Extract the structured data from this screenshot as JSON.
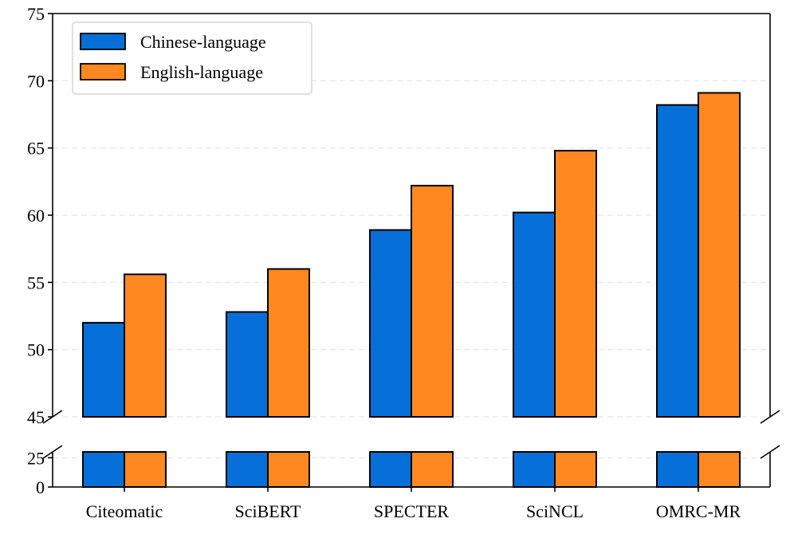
{
  "chart_data": {
    "type": "bar",
    "categories": [
      "Citeomatic",
      "SciBERT",
      "SPECTER",
      "SciNCL",
      "OMRC-MR"
    ],
    "series": [
      {
        "name": "Chinese-language",
        "values": [
          52.0,
          52.8,
          58.9,
          60.2,
          68.2
        ],
        "color": "#0670d8"
      },
      {
        "name": "English-language",
        "values": [
          55.6,
          56.0,
          62.2,
          64.8,
          69.1
        ],
        "color": "#ff8820"
      }
    ],
    "title": "",
    "xlabel": "",
    "ylabel": "",
    "broken_axis": true,
    "upper_panel": {
      "ylim": [
        45,
        75
      ],
      "yticks": [
        "45",
        "50",
        "55",
        "60",
        "65",
        "70",
        "75"
      ]
    },
    "lower_panel": {
      "ylim": [
        0,
        30
      ],
      "yticks": [
        "0",
        "25"
      ]
    },
    "grid": "horizontal dashed",
    "legend_position": "top-left"
  }
}
